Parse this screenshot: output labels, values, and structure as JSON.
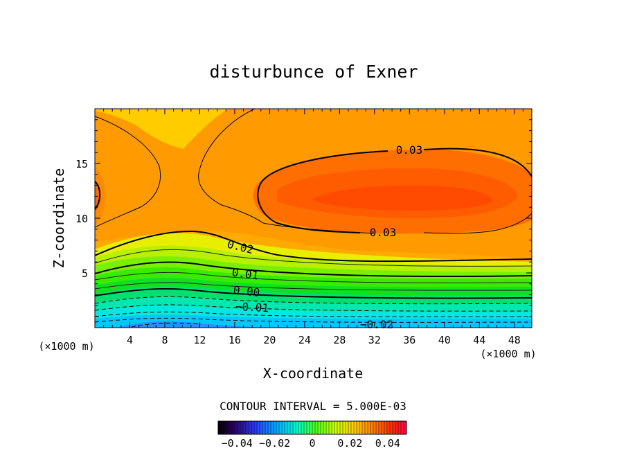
{
  "chart_data": {
    "type": "contour",
    "title": "disturbunce of Exner",
    "xlabel": "X-coordinate",
    "ylabel": "Z-coordinate",
    "x_unit": "(×1000 m)",
    "y_unit": "(×1000 m)",
    "xlim": [
      0,
      50
    ],
    "ylim": [
      0,
      20
    ],
    "x_ticks": [
      4,
      8,
      12,
      16,
      20,
      24,
      28,
      32,
      36,
      40,
      44,
      48
    ],
    "y_ticks": [
      5,
      10,
      15
    ],
    "contour_interval_text": "CONTOUR INTERVAL = 5.000E-03",
    "contour_interval": 0.005,
    "contour_labels": [
      "0.03",
      "0.03",
      "0.02",
      "0.01",
      "0.00",
      "-0.01",
      "-0.02"
    ],
    "colorbar": {
      "range": [
        -0.05,
        0.05
      ],
      "tick_labels": [
        "-0.04",
        "-0.02",
        "0",
        "0.02",
        "0.04"
      ],
      "tick_values": [
        -0.04,
        -0.02,
        0,
        0.02,
        0.04
      ]
    },
    "colors": {
      "max_core": "#ff4400",
      "high": "#ff7f00",
      "mid": "#ffc000",
      "zero": "#00ff00",
      "low": "#00e8ff",
      "min": "#1a66ff"
    }
  }
}
